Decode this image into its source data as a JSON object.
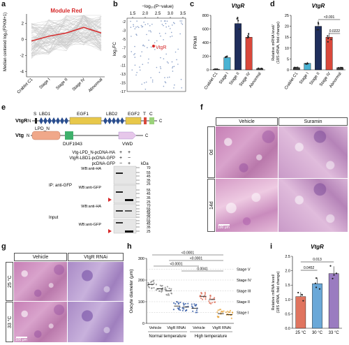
{
  "panels": {
    "a": {
      "label": "a",
      "title": "Module Red",
      "ylabel": "Median centered log₂(FPKM+1)",
      "yticks": [
        "2",
        "0",
        "-2",
        "-4"
      ],
      "xticks": [
        "Crablet C1",
        "Stage I",
        "Stage II",
        "Stage IV",
        "Abnormal"
      ]
    },
    "b": {
      "label": "b",
      "xlabel": "−log₁₀(P−value)",
      "xticks": [
        "1.5",
        "2.0",
        "2.5",
        "3.0",
        "3.5"
      ],
      "ylabel": "log₂FC",
      "yticks": [
        "-2",
        "-3",
        "-5",
        "-7",
        "-9",
        "-11",
        "-13",
        "-15",
        "-17"
      ],
      "annotation": "VtgR"
    },
    "c": {
      "label": "c",
      "title": "VtgR",
      "ylabel": "FPKM",
      "yticks": [
        "800",
        "600",
        "400",
        "200",
        "0"
      ],
      "xticks": [
        "Crablet C1",
        "Stage I",
        "Stage II",
        "Stage IV",
        "Abnormal"
      ]
    },
    "d": {
      "label": "d",
      "title": "VtgR",
      "ylabel": "Relative mRNA level/ (18S rRNA, fold change)",
      "yticks": [
        "25",
        "20",
        "15",
        "10",
        "5",
        "0"
      ],
      "xticks": [
        "Crablet C1",
        "Stage I",
        "Stage II",
        "Stage IV",
        "Abnormal"
      ],
      "pvals": [
        "<0.001",
        "0.0222"
      ]
    },
    "e": {
      "label": "e",
      "vtgr_name": "VtgR",
      "vtg_name": "Vtg",
      "vtgr_domains": [
        "S",
        "LBD1",
        "EGF1",
        "LBD2",
        "EGF2",
        "T",
        "C"
      ],
      "vtg_domains": [
        "LPD_N",
        "DUF1943",
        "VWD"
      ],
      "n_term": "N",
      "c_term": "C",
      "constructs": [
        "Vtg-LPD_N-pcDNA-HA",
        "VtgR-LBD1-pcDNA-GFP",
        "pcDNA-GFP"
      ],
      "signs": [
        [
          "+",
          "+"
        ],
        [
          "+",
          "−"
        ],
        [
          "−",
          "+"
        ]
      ],
      "kda": "kDa",
      "ip_label": "IP: anti-GFP",
      "input_label": "Input",
      "wb_ha": "WB:anti-HA",
      "wb_gfp": "WB:anti-GFP",
      "markers_ip": [
        "70",
        "55",
        "45",
        "35",
        "25",
        "55",
        "45",
        "35",
        "25"
      ],
      "markers_input": [
        "70",
        "55",
        "45",
        "35",
        "25",
        "55",
        "45",
        "35",
        "25"
      ]
    },
    "f": {
      "label": "f",
      "col1": "Vehicle",
      "col2": "Suramin",
      "row1": "0d",
      "row2": "14d",
      "scale": "100 μm"
    },
    "g": {
      "label": "g",
      "col1": "Vehicle",
      "col2": "VtgR RNAi",
      "row1": "25 °C",
      "row2": "33 °C",
      "scale": "100 μm"
    },
    "h": {
      "label": "h",
      "ylabel": "Oocyte diameter (μm)",
      "yticks": [
        "300",
        "200",
        "100",
        "0"
      ],
      "stage_labels": [
        "Stage V",
        "Stage IV",
        "Stage III",
        "Stage II",
        "Stage I"
      ],
      "pvals": [
        "<0.0001",
        "<0.0001",
        "<0.0001",
        "0.0041"
      ],
      "groups": [
        "Vehicle",
        "VtgR RNAi",
        "Vehicle",
        "VtgR RNAi"
      ],
      "conditions": [
        "Normal temperature",
        "High temperature"
      ]
    },
    "i": {
      "label": "i",
      "title": "VtgR",
      "ylabel": "Relative mRNA level/ (18S rRNA, fold change)",
      "yticks": [
        "2.5",
        "2.0",
        "1.5",
        "1.0",
        "0.5",
        "0.0"
      ],
      "xticks": [
        "25 °C",
        "30 °C",
        "33 °C"
      ],
      "pvals": [
        "0.013",
        "0.0452"
      ]
    }
  },
  "chart_data": [
    {
      "type": "line",
      "panel": "a",
      "title": "Module Red",
      "xlabel": "",
      "ylabel": "Median centered log₂(FPKM+1)",
      "categories": [
        "Crablet C1",
        "Stage I",
        "Stage II",
        "Stage IV",
        "Abnormal"
      ],
      "series": [
        {
          "values": [
            -0.2,
            0.4,
            0.8,
            1.5,
            0.8
          ]
        }
      ],
      "ylim": [
        -4.5,
        3
      ],
      "color": "#d62728"
    },
    {
      "type": "bar",
      "panel": "c",
      "title": "VtgR",
      "ylabel": "FPKM",
      "categories": [
        "Crablet C1",
        "Stage I",
        "Stage II",
        "Stage IV",
        "Abnormal"
      ],
      "values": [
        10,
        180,
        680,
        480,
        20
      ],
      "ylim": [
        0,
        800
      ],
      "colors": [
        "#444444",
        "#4ab3d3",
        "#1f2e5c",
        "#d9483b",
        "#444444"
      ]
    },
    {
      "type": "bar",
      "panel": "d",
      "title": "VtgR",
      "ylabel": "Relative mRNA level/ (18S rRNA, fold change)",
      "categories": [
        "Crablet C1",
        "Stage I",
        "Stage II",
        "Stage IV",
        "Abnormal"
      ],
      "values": [
        1,
        3,
        20,
        15,
        1
      ],
      "ylim": [
        0,
        25
      ],
      "colors": [
        "#444444",
        "#4ab3d3",
        "#1f2e5c",
        "#d9483b",
        "#444444"
      ]
    },
    {
      "type": "bar",
      "panel": "i",
      "title": "VtgR",
      "ylabel": "Relative mRNA level/ (18S rRNA, fold change)",
      "categories": [
        "25 °C",
        "30 °C",
        "33 °C"
      ],
      "values": [
        1.1,
        1.55,
        1.9
      ],
      "ylim": [
        0,
        2.5
      ],
      "colors": [
        "#e0745f",
        "#6aa8d8",
        "#9a7cc0"
      ]
    },
    {
      "type": "scatter",
      "panel": "h",
      "ylabel": "Oocyte diameter (μm)",
      "ylim": [
        0,
        300
      ],
      "groups": [
        "Vehicle",
        "VtgR RNAi",
        "Vehicle",
        "VtgR RNAi",
        "Vehicle",
        "VtgR RNAi",
        "Vehicle",
        "VtgR RNAi",
        "Vehicle",
        "VtgR RNAi"
      ],
      "medians": [
        180,
        160,
        150,
        80,
        75,
        70,
        125,
        110,
        45,
        40
      ],
      "colors": [
        "#888888",
        "#888888",
        "#888888",
        "#3a5fa8",
        "#3a5fa8",
        "#3a5fa8",
        "#e0745f",
        "#e0745f",
        "#e8a640",
        "#e8a640"
      ]
    }
  ]
}
